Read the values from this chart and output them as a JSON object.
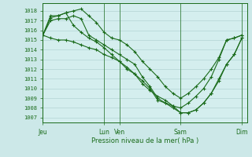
{
  "xlabel": "Pression niveau de la mer( hPa )",
  "bg_color": "#cce8e8",
  "plot_bg_color": "#d4eeee",
  "grid_color": "#aacccc",
  "line_color": "#1a6b1a",
  "xtick_labels": [
    "Jeu",
    "",
    "Lun",
    "Ven",
    "",
    "Sam",
    "",
    "Dim"
  ],
  "xtick_positions": [
    0,
    24,
    48,
    60,
    84,
    108,
    132,
    156
  ],
  "ytick_min": 1007,
  "ytick_max": 1018,
  "ylim": [
    1006.5,
    1018.8
  ],
  "xlim": [
    0,
    160
  ],
  "series": [
    {
      "x": [
        0,
        6,
        12,
        18,
        24,
        30,
        36,
        42,
        48,
        54,
        60,
        66,
        72,
        78,
        84,
        90,
        96,
        102,
        108,
        114,
        120,
        126,
        132,
        138,
        144,
        150,
        156
      ],
      "y": [
        1015.5,
        1015.2,
        1015.0,
        1015.0,
        1014.8,
        1014.5,
        1014.2,
        1014.0,
        1013.5,
        1013.2,
        1012.8,
        1012.0,
        1011.5,
        1010.5,
        1009.8,
        1009.2,
        1008.8,
        1008.2,
        1008.0,
        1008.5,
        1009.2,
        1010.0,
        1011.2,
        1013.0,
        1015.0,
        1015.2,
        1015.5
      ]
    },
    {
      "x": [
        0,
        6,
        12,
        18,
        24,
        30,
        36,
        42,
        48,
        54,
        60,
        66,
        72,
        78,
        84,
        90,
        96,
        102,
        108,
        114,
        120,
        126,
        132,
        138,
        144,
        150,
        156
      ],
      "y": [
        1015.5,
        1017.3,
        1017.5,
        1017.8,
        1018.0,
        1018.2,
        1017.5,
        1016.8,
        1015.8,
        1015.2,
        1015.0,
        1014.5,
        1013.8,
        1012.8,
        1012.0,
        1011.2,
        1010.2,
        1009.5,
        1009.0,
        1009.5,
        1010.2,
        1011.0,
        1012.0,
        1013.2,
        1015.0,
        1015.2,
        1015.5
      ]
    },
    {
      "x": [
        0,
        6,
        12,
        18,
        24,
        30,
        36,
        42,
        48,
        54,
        60,
        66,
        72,
        78,
        84,
        90,
        96,
        102,
        108,
        114,
        120,
        126,
        132,
        138,
        144,
        150,
        156
      ],
      "y": [
        1015.5,
        1017.0,
        1017.2,
        1017.2,
        1017.5,
        1017.2,
        1015.5,
        1015.0,
        1014.5,
        1014.0,
        1013.5,
        1013.0,
        1012.5,
        1011.2,
        1010.2,
        1009.0,
        1008.5,
        1008.0,
        1007.5,
        1007.5,
        1007.8,
        1008.5,
        1009.5,
        1010.8,
        1012.5,
        1013.5,
        1015.2
      ]
    },
    {
      "x": [
        0,
        6,
        12,
        18,
        24,
        30,
        36,
        42,
        48,
        54,
        60,
        66,
        72,
        78,
        84,
        90,
        96,
        102,
        108,
        114,
        120,
        126,
        132,
        138,
        144,
        150,
        156
      ],
      "y": [
        1015.5,
        1017.5,
        1017.5,
        1017.8,
        1016.5,
        1015.8,
        1015.2,
        1014.8,
        1014.2,
        1013.5,
        1012.8,
        1012.2,
        1011.5,
        1010.8,
        1010.0,
        1008.8,
        1008.5,
        1008.2,
        1007.5,
        1007.5,
        1007.8,
        1008.5,
        1009.5,
        1011.0,
        1012.5,
        1013.5,
        1015.2
      ]
    }
  ]
}
